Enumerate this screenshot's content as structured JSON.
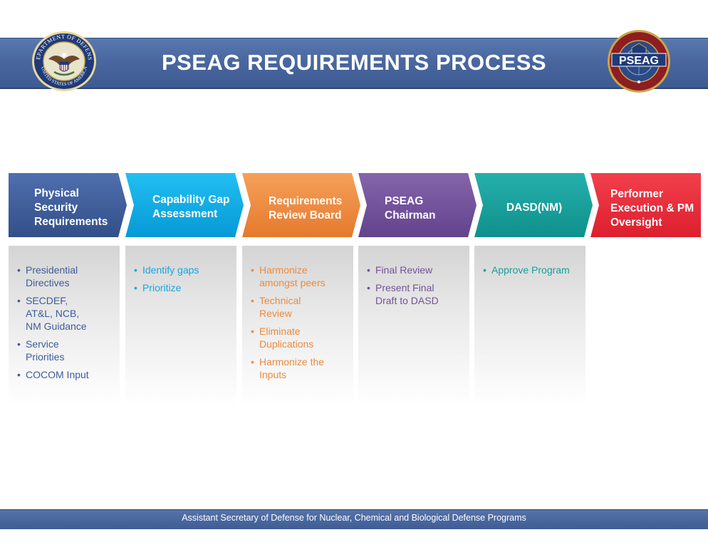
{
  "header": {
    "title": "PSEAG REQUIREMENTS PROCESS",
    "dod_seal_top": "DEPARTMENT OF DEFENSE",
    "dod_seal_bottom": "UNITED STATES OF AMERICA",
    "pseag_logo_text": "PSEAG"
  },
  "colors": {
    "navy": "#3d5a92",
    "step1": "#3e5c9a",
    "step2": "#0aaee8",
    "step3": "#ee8a3a",
    "step4": "#74529b",
    "step5": "#16a09c",
    "step6": "#ec2c3b"
  },
  "steps": [
    {
      "label": "Physical Security Requirements",
      "items": [
        "Presidential Directives",
        "SECDEF, AT&L, NCB, NM Guidance",
        "Service Priorities",
        "COCOM Input"
      ]
    },
    {
      "label": "Capability Gap Assessment",
      "items": [
        "Identify gaps",
        "Prioritize"
      ]
    },
    {
      "label": "Requirements Review Board",
      "items": [
        "Harmonize amongst peers",
        "Technical Review",
        "Eliminate Duplications",
        "Harmonize the Inputs"
      ]
    },
    {
      "label": "PSEAG Chairman",
      "items": [
        "Final Review",
        "Present Final Draft to DASD"
      ]
    },
    {
      "label": "DASD(NM)",
      "items": [
        "Approve Program"
      ]
    },
    {
      "label": "Performer Execution & PM Oversight",
      "items": []
    }
  ],
  "footer": {
    "text": "Assistant Secretary of Defense for Nuclear, Chemical and Biological Defense Programs"
  }
}
